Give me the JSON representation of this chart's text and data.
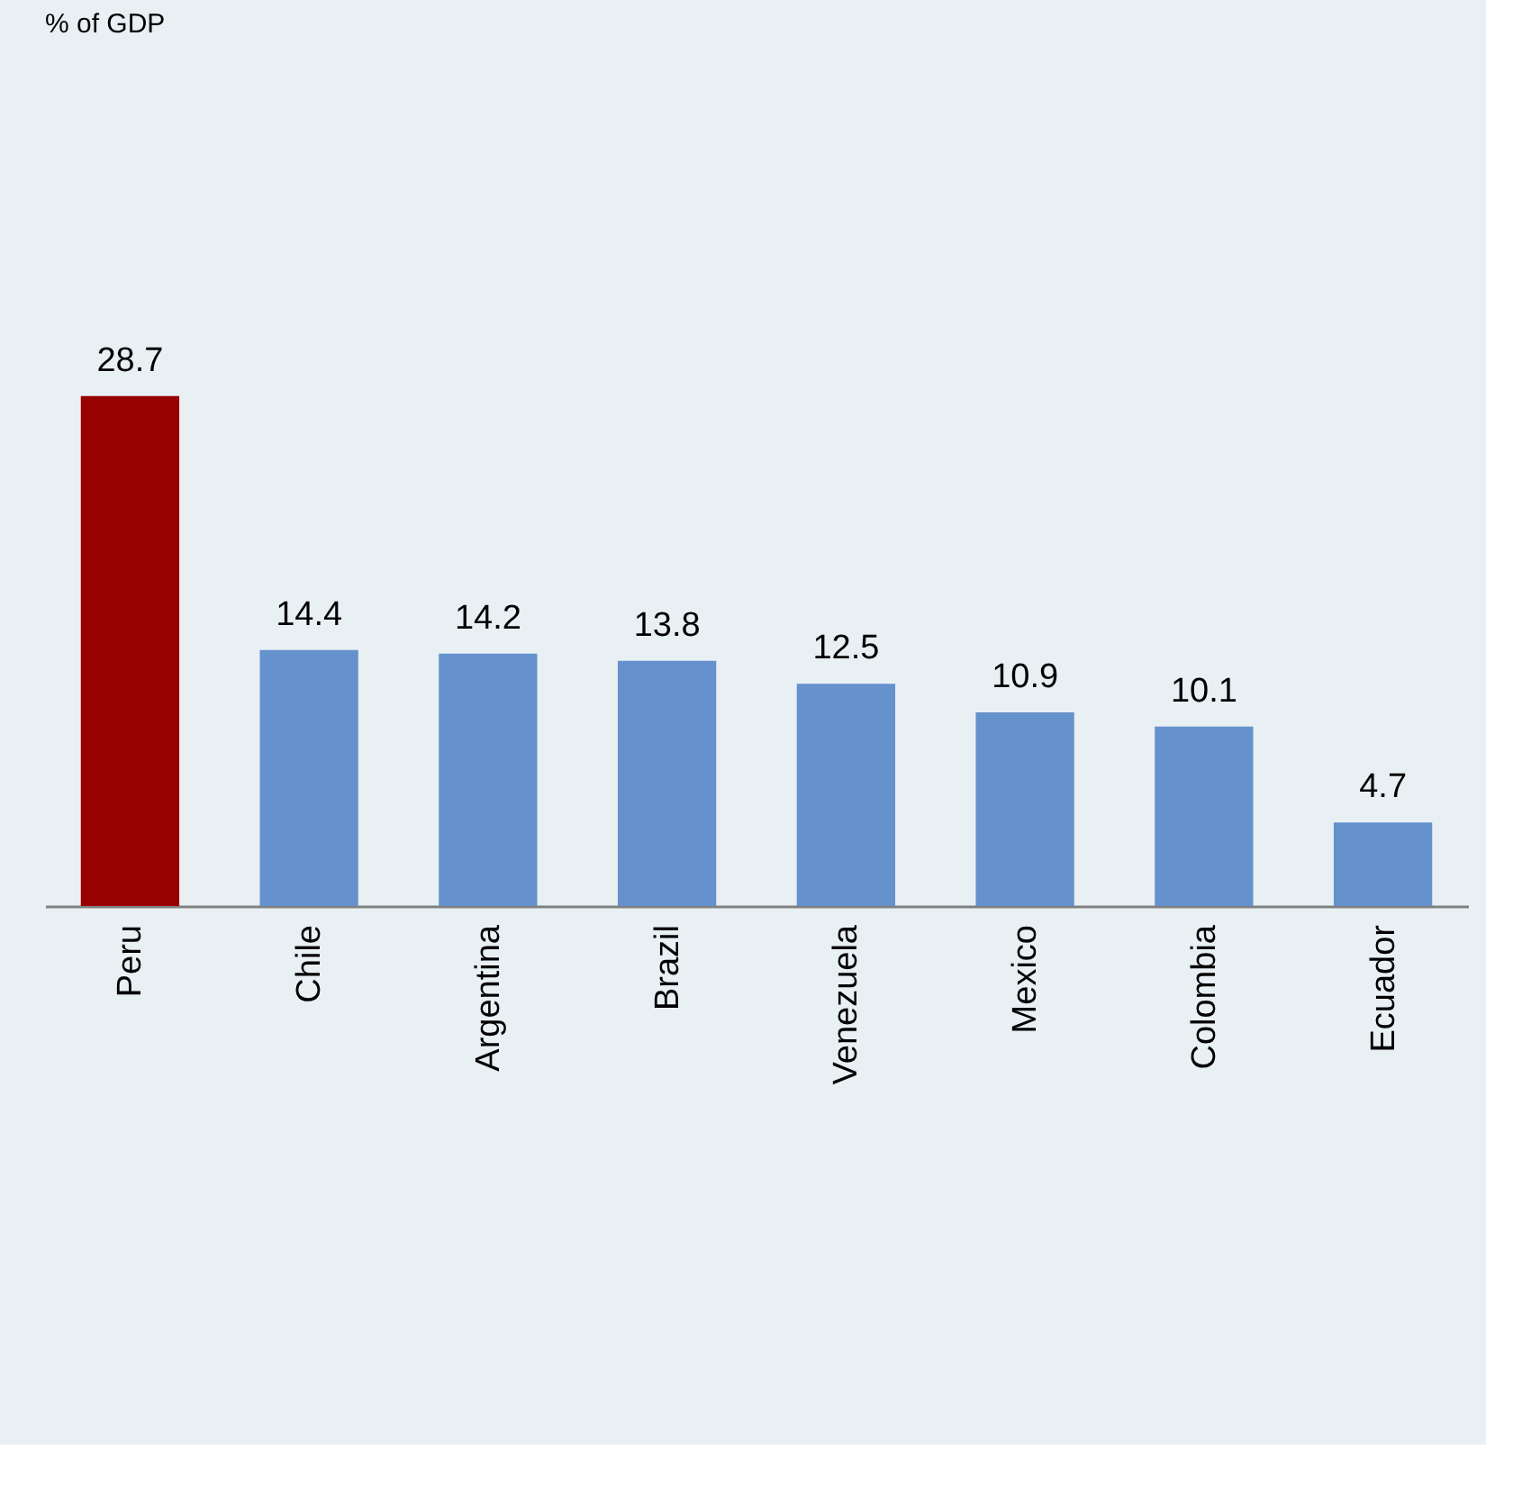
{
  "chart_data": {
    "type": "bar",
    "annotations": [
      "% of GDP"
    ],
    "categories": [
      "Peru",
      "Chile",
      "Argentina",
      "Brazil",
      "Venezuela",
      "Mexico",
      "Colombia",
      "Ecuador"
    ],
    "values": [
      28.7,
      14.4,
      14.2,
      13.8,
      12.5,
      10.9,
      10.1,
      4.7
    ],
    "colors": [
      "#990000",
      "#6591cc",
      "#6591cc",
      "#6591cc",
      "#6591cc",
      "#6591cc",
      "#6591cc",
      "#6591cc"
    ],
    "data_labels": true
  }
}
